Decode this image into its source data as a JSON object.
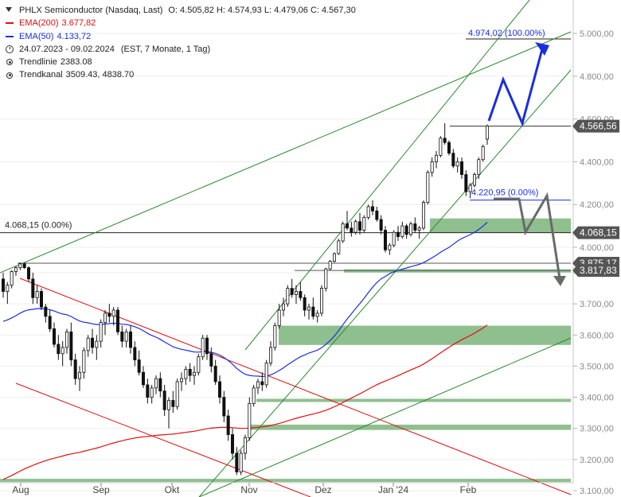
{
  "legend": {
    "title": "PHLX Semiconductor (Nasdaq, Last)",
    "ohlc": "O: 4.505,82  H: 4.574,93  L: 4.479,06  C: 4.567,30",
    "ema200_label": "EMA(200)",
    "ema200_value": "3.677,82",
    "ema50_label": "EMA(50)",
    "ema50_value": "4.133,72",
    "range": "24.07.2023 - 09.02.2024",
    "range_detail": "(EST, 7 Monate, 1 Tag)",
    "trendline_label": "Trendlinie",
    "trendline_value": "2383.08",
    "trendchannel_label": "Trendkanal",
    "trendchannel_value": "3509.43, 4838.70"
  },
  "colors": {
    "candle": "#111111",
    "ema200": "#e01010",
    "ema50": "#1a2ee0",
    "trend_green": "#2a8a2a",
    "channel_red": "#e01010",
    "zone_fill": "#8fbf8f",
    "projection_blue": "#1a2ee0",
    "projection_gray": "#6a6a6a",
    "price_tag": "#555555"
  },
  "chart_data": {
    "type": "candlestick",
    "title": "PHLX Semiconductor (Nasdaq, Last)",
    "ylim": [
      3100,
      5000
    ],
    "x_ticks": [
      "Aug",
      "Sep",
      "Okt",
      "Nov",
      "Dez",
      "Jan '24",
      "Feb"
    ],
    "y_ticks": [
      "3.100,00",
      "3.200,00",
      "3.300,00",
      "3.400,00",
      "3.500,00",
      "3.600,00",
      "3.700,00",
      "3.800,00",
      "4.000,00",
      "4.200,00",
      "4.400,00",
      "4.600,00",
      "4.800,00",
      "5.000,00"
    ],
    "y_tick_values": [
      3100,
      3200,
      3300,
      3400,
      3500,
      3600,
      3700,
      3800,
      4000,
      4200,
      4400,
      4600,
      4800,
      5000
    ],
    "price_tags": [
      {
        "label": "4.566,56",
        "value": 4566.56
      },
      {
        "label": "4.068,15",
        "value": 4068.15
      },
      {
        "label": "3.875,17",
        "value": 3875.17
      },
      {
        "label": "3.817,83",
        "value": 3817.83
      }
    ],
    "annotations": [
      {
        "text": "4.974,02 (100.00%)",
        "value": 4974.02
      },
      {
        "text": "4.220,95 (0.00%)",
        "value": 4220.95
      },
      {
        "text": "4.068,15 (0.00%)",
        "value": 4068.15
      }
    ],
    "series": [
      {
        "name": "EMA(200)",
        "last": 3677.82
      },
      {
        "name": "EMA(50)",
        "last": 4133.72
      }
    ],
    "support_zones": [
      [
        4068,
        4135
      ],
      [
        3810,
        3827
      ],
      [
        3568,
        3630
      ],
      [
        3385,
        3395
      ],
      [
        3295,
        3312
      ],
      [
        3128,
        3138
      ]
    ],
    "candles": [
      [
        3780,
        3800,
        3720,
        3740
      ],
      [
        3740,
        3770,
        3700,
        3760
      ],
      [
        3760,
        3820,
        3750,
        3810
      ],
      [
        3810,
        3850,
        3790,
        3840
      ],
      [
        3840,
        3880,
        3820,
        3870
      ],
      [
        3870,
        3880,
        3830,
        3840
      ],
      [
        3840,
        3850,
        3770,
        3780
      ],
      [
        3780,
        3800,
        3700,
        3720
      ],
      [
        3720,
        3760,
        3700,
        3740
      ],
      [
        3740,
        3750,
        3680,
        3690
      ],
      [
        3690,
        3700,
        3640,
        3660
      ],
      [
        3660,
        3680,
        3610,
        3620
      ],
      [
        3620,
        3640,
        3560,
        3570
      ],
      [
        3570,
        3600,
        3520,
        3540
      ],
      [
        3540,
        3580,
        3500,
        3560
      ],
      [
        3560,
        3620,
        3540,
        3610
      ],
      [
        3610,
        3640,
        3500,
        3520
      ],
      [
        3520,
        3540,
        3440,
        3460
      ],
      [
        3460,
        3500,
        3420,
        3480
      ],
      [
        3480,
        3560,
        3460,
        3550
      ],
      [
        3550,
        3600,
        3530,
        3590
      ],
      [
        3590,
        3620,
        3540,
        3560
      ],
      [
        3560,
        3600,
        3520,
        3580
      ],
      [
        3580,
        3650,
        3560,
        3640
      ],
      [
        3640,
        3680,
        3600,
        3670
      ],
      [
        3670,
        3700,
        3640,
        3660
      ],
      [
        3660,
        3690,
        3630,
        3680
      ],
      [
        3680,
        3690,
        3600,
        3610
      ],
      [
        3610,
        3630,
        3560,
        3580
      ],
      [
        3580,
        3620,
        3560,
        3610
      ],
      [
        3610,
        3630,
        3540,
        3560
      ],
      [
        3560,
        3580,
        3500,
        3520
      ],
      [
        3520,
        3550,
        3470,
        3480
      ],
      [
        3480,
        3500,
        3430,
        3440
      ],
      [
        3440,
        3460,
        3380,
        3400
      ],
      [
        3400,
        3440,
        3380,
        3430
      ],
      [
        3430,
        3470,
        3410,
        3460
      ],
      [
        3460,
        3480,
        3400,
        3420
      ],
      [
        3420,
        3440,
        3340,
        3360
      ],
      [
        3360,
        3400,
        3300,
        3390
      ],
      [
        3390,
        3420,
        3350,
        3370
      ],
      [
        3370,
        3460,
        3360,
        3450
      ],
      [
        3450,
        3480,
        3420,
        3460
      ],
      [
        3460,
        3500,
        3440,
        3490
      ],
      [
        3490,
        3510,
        3450,
        3470
      ],
      [
        3470,
        3500,
        3440,
        3480
      ],
      [
        3480,
        3540,
        3470,
        3530
      ],
      [
        3530,
        3600,
        3520,
        3590
      ],
      [
        3590,
        3600,
        3520,
        3540
      ],
      [
        3540,
        3560,
        3480,
        3500
      ],
      [
        3500,
        3520,
        3440,
        3450
      ],
      [
        3450,
        3470,
        3380,
        3400
      ],
      [
        3400,
        3420,
        3320,
        3340
      ],
      [
        3340,
        3360,
        3260,
        3280
      ],
      [
        3280,
        3300,
        3200,
        3220
      ],
      [
        3220,
        3240,
        3150,
        3160
      ],
      [
        3160,
        3230,
        3150,
        3220
      ],
      [
        3220,
        3280,
        3200,
        3270
      ],
      [
        3270,
        3400,
        3260,
        3380
      ],
      [
        3380,
        3440,
        3370,
        3430
      ],
      [
        3430,
        3460,
        3410,
        3450
      ],
      [
        3450,
        3480,
        3420,
        3440
      ],
      [
        3440,
        3520,
        3430,
        3510
      ],
      [
        3510,
        3580,
        3500,
        3560
      ],
      [
        3560,
        3640,
        3550,
        3630
      ],
      [
        3630,
        3700,
        3620,
        3680
      ],
      [
        3680,
        3720,
        3660,
        3700
      ],
      [
        3700,
        3760,
        3690,
        3750
      ],
      [
        3750,
        3780,
        3720,
        3730
      ],
      [
        3730,
        3760,
        3700,
        3740
      ],
      [
        3740,
        3770,
        3710,
        3720
      ],
      [
        3720,
        3730,
        3660,
        3680
      ],
      [
        3680,
        3700,
        3650,
        3690
      ],
      [
        3690,
        3720,
        3650,
        3660
      ],
      [
        3660,
        3680,
        3640,
        3670
      ],
      [
        3670,
        3760,
        3660,
        3750
      ],
      [
        3750,
        3840,
        3740,
        3830
      ],
      [
        3830,
        3900,
        3820,
        3890
      ],
      [
        3890,
        3960,
        3880,
        3950
      ],
      [
        3950,
        4040,
        3940,
        4030
      ],
      [
        4030,
        4120,
        4020,
        4110
      ],
      [
        4110,
        4170,
        4080,
        4090
      ],
      [
        4090,
        4120,
        4050,
        4070
      ],
      [
        4070,
        4130,
        4060,
        4120
      ],
      [
        4120,
        4160,
        4060,
        4080
      ],
      [
        4080,
        4150,
        4070,
        4140
      ],
      [
        4140,
        4200,
        4130,
        4190
      ],
      [
        4190,
        4220,
        4150,
        4170
      ],
      [
        4170,
        4190,
        4120,
        4130
      ],
      [
        4130,
        4150,
        4060,
        4080
      ],
      [
        4080,
        4100,
        3960,
        3980
      ],
      [
        3980,
        4020,
        3940,
        4010
      ],
      [
        4010,
        4080,
        4000,
        4070
      ],
      [
        4070,
        4100,
        4030,
        4050
      ],
      [
        4050,
        4120,
        4040,
        4100
      ],
      [
        4100,
        4110,
        4040,
        4060
      ],
      [
        4060,
        4120,
        4050,
        4110
      ],
      [
        4110,
        4140,
        4070,
        4080
      ],
      [
        4080,
        4100,
        4040,
        4090
      ],
      [
        4090,
        4220,
        4080,
        4210
      ],
      [
        4210,
        4360,
        4200,
        4350
      ],
      [
        4350,
        4420,
        4330,
        4400
      ],
      [
        4400,
        4450,
        4370,
        4430
      ],
      [
        4430,
        4520,
        4420,
        4510
      ],
      [
        4510,
        4580,
        4480,
        4490
      ],
      [
        4490,
        4500,
        4430,
        4440
      ],
      [
        4440,
        4460,
        4370,
        4380
      ],
      [
        4380,
        4420,
        4350,
        4400
      ],
      [
        4400,
        4420,
        4320,
        4340
      ],
      [
        4340,
        4360,
        4240,
        4260
      ],
      [
        4260,
        4300,
        4230,
        4290
      ],
      [
        4290,
        4350,
        4280,
        4340
      ],
      [
        4340,
        4420,
        4320,
        4410
      ],
      [
        4410,
        4480,
        4400,
        4470
      ],
      [
        4505.82,
        4574.93,
        4479.06,
        4567.3
      ]
    ]
  }
}
